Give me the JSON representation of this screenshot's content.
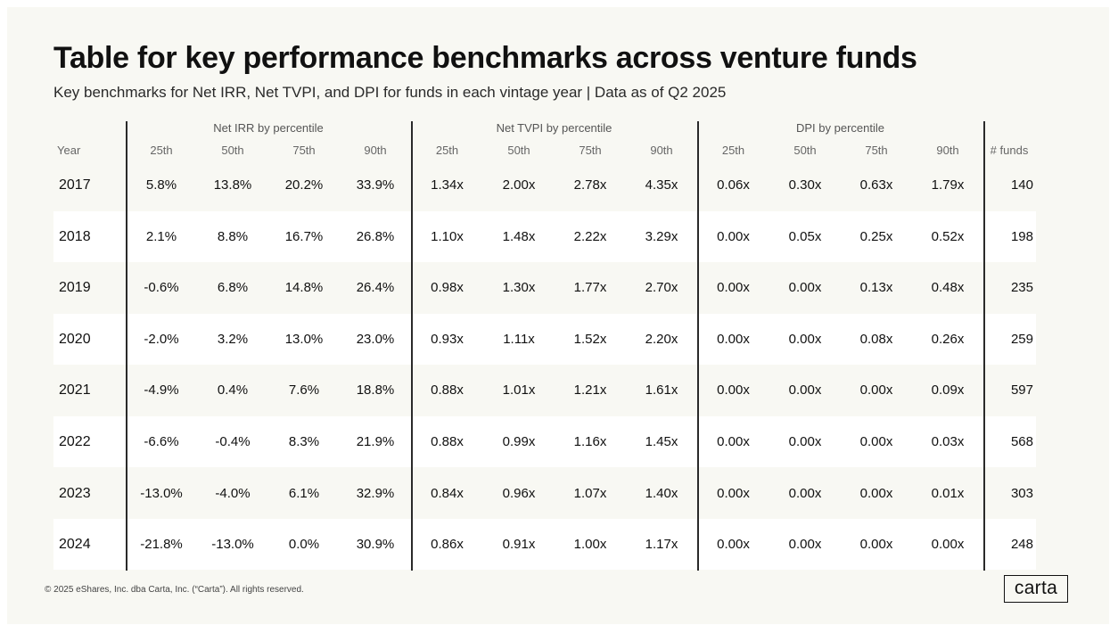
{
  "title": "Table for key performance benchmarks across venture funds",
  "subtitle": "Key benchmarks for Net IRR, Net TVPI, and DPI for funds in each vintage year | Data as of Q2 2025",
  "footer": "© 2025 eShares, Inc. dba Carta, Inc. (“Carta”). All rights reserved.",
  "logo_text": "carta",
  "colors": {
    "background": "#f8f8f3",
    "stripe": "#ffffff",
    "text": "#111111",
    "rule": "#2a2a2a"
  },
  "chart_data": {
    "type": "table",
    "groups": [
      "Net IRR by percentile",
      "Net TVPI by percentile",
      "DPI by percentile"
    ],
    "columns": [
      "Year",
      "25th",
      "50th",
      "75th",
      "90th",
      "25th",
      "50th",
      "75th",
      "90th",
      "25th",
      "50th",
      "75th",
      "90th",
      "# funds"
    ],
    "rows": [
      [
        "2017",
        "5.8%",
        "13.8%",
        "20.2%",
        "33.9%",
        "1.34x",
        "2.00x",
        "2.78x",
        "4.35x",
        "0.06x",
        "0.30x",
        "0.63x",
        "1.79x",
        "140"
      ],
      [
        "2018",
        "2.1%",
        "8.8%",
        "16.7%",
        "26.8%",
        "1.10x",
        "1.48x",
        "2.22x",
        "3.29x",
        "0.00x",
        "0.05x",
        "0.25x",
        "0.52x",
        "198"
      ],
      [
        "2019",
        "-0.6%",
        "6.8%",
        "14.8%",
        "26.4%",
        "0.98x",
        "1.30x",
        "1.77x",
        "2.70x",
        "0.00x",
        "0.00x",
        "0.13x",
        "0.48x",
        "235"
      ],
      [
        "2020",
        "-2.0%",
        "3.2%",
        "13.0%",
        "23.0%",
        "0.93x",
        "1.11x",
        "1.52x",
        "2.20x",
        "0.00x",
        "0.00x",
        "0.08x",
        "0.26x",
        "259"
      ],
      [
        "2021",
        "-4.9%",
        "0.4%",
        "7.6%",
        "18.8%",
        "0.88x",
        "1.01x",
        "1.21x",
        "1.61x",
        "0.00x",
        "0.00x",
        "0.00x",
        "0.09x",
        "597"
      ],
      [
        "2022",
        "-6.6%",
        "-0.4%",
        "8.3%",
        "21.9%",
        "0.88x",
        "0.99x",
        "1.16x",
        "1.45x",
        "0.00x",
        "0.00x",
        "0.00x",
        "0.03x",
        "568"
      ],
      [
        "2023",
        "-13.0%",
        "-4.0%",
        "6.1%",
        "32.9%",
        "0.84x",
        "0.96x",
        "1.07x",
        "1.40x",
        "0.00x",
        "0.00x",
        "0.00x",
        "0.01x",
        "303"
      ],
      [
        "2024",
        "-21.8%",
        "-13.0%",
        "0.0%",
        "30.9%",
        "0.86x",
        "0.91x",
        "1.00x",
        "1.17x",
        "0.00x",
        "0.00x",
        "0.00x",
        "0.00x",
        "248"
      ]
    ]
  }
}
